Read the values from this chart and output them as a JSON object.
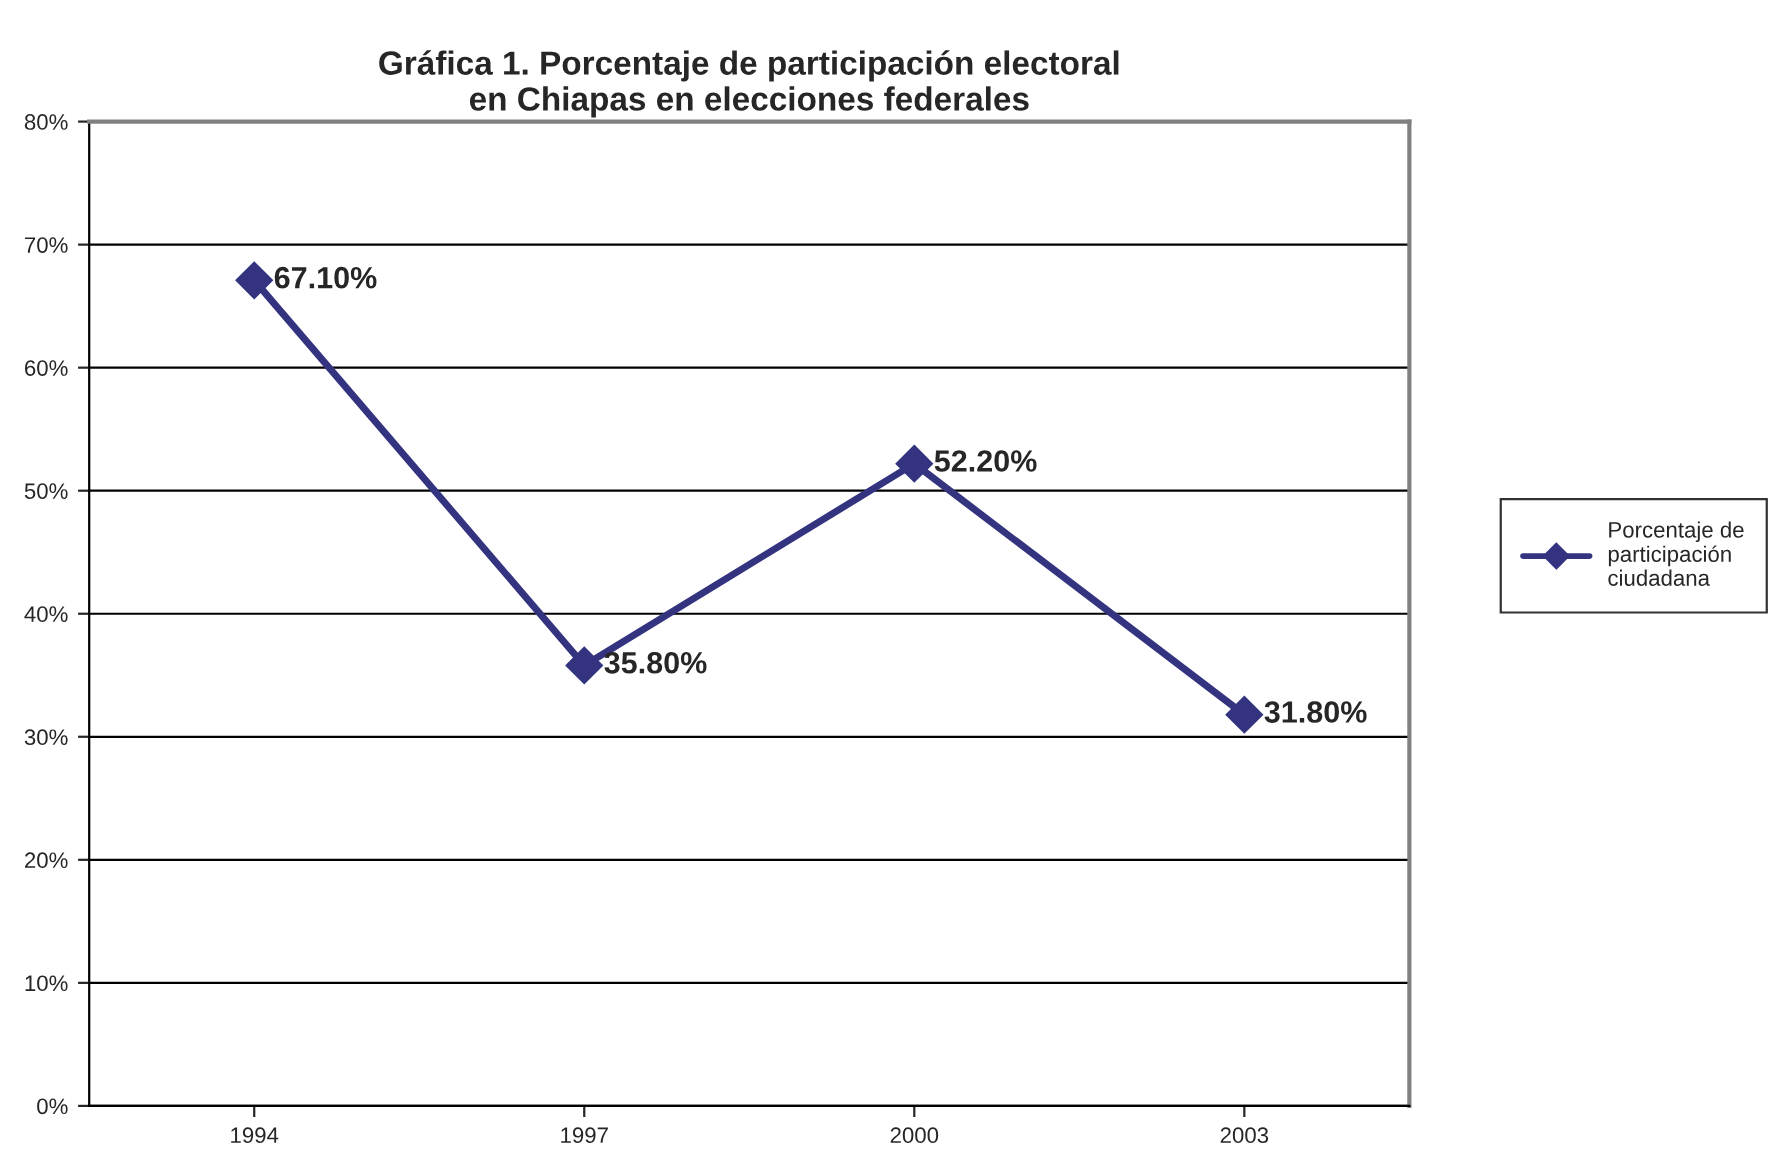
{
  "chart_data": {
    "type": "line",
    "title": "Gráfica 1. Porcentaje de participación electoral\nen Chiapas en elecciones federales",
    "categories": [
      "1994",
      "1997",
      "2000",
      "2003"
    ],
    "series": [
      {
        "name": "Porcentaje de participación ciudadana",
        "color": "#333380",
        "values": [
          67.1,
          35.8,
          52.2,
          31.8
        ],
        "value_labels": [
          "67.10%",
          "35.80%",
          "52.20%",
          "31.80%"
        ]
      }
    ],
    "ylim": [
      0,
      80
    ],
    "yticks": [
      {
        "value": 0,
        "label": "0%"
      },
      {
        "value": 10,
        "label": "10%"
      },
      {
        "value": 20,
        "label": "20%"
      },
      {
        "value": 30,
        "label": "30%"
      },
      {
        "value": 40,
        "label": "40%"
      },
      {
        "value": 50,
        "label": "50%"
      },
      {
        "value": 60,
        "label": "60%"
      },
      {
        "value": 70,
        "label": "70%"
      },
      {
        "value": 80,
        "label": "80%"
      }
    ],
    "grid": "y",
    "legend": "right",
    "marker": "diamond",
    "line_style": "solid"
  }
}
